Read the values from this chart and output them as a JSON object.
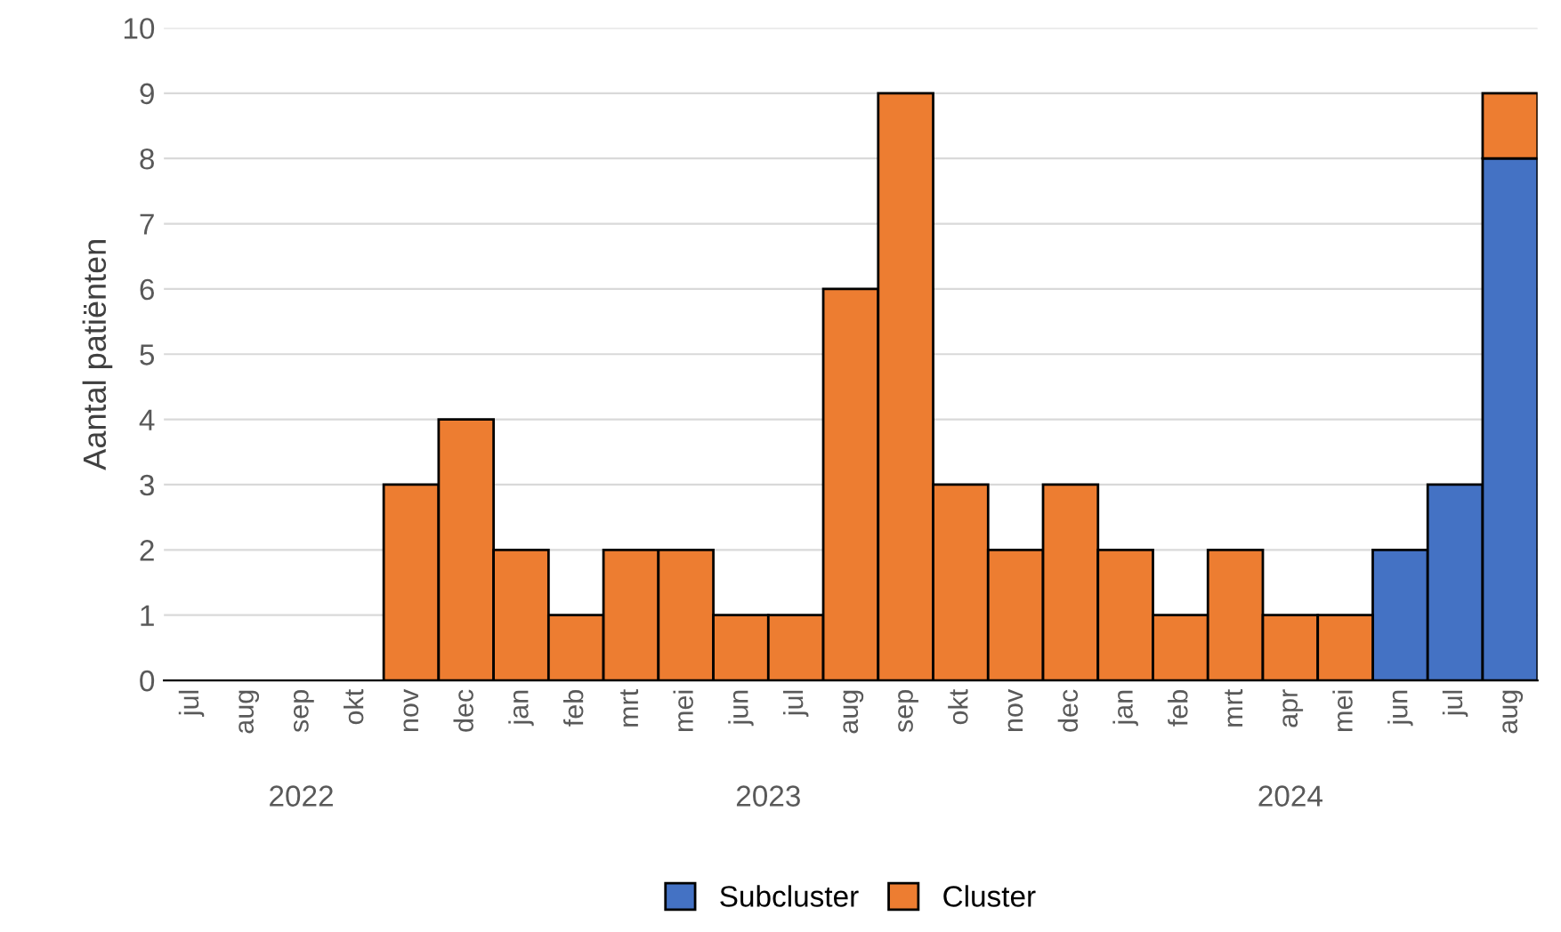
{
  "chart_data": {
    "type": "bar",
    "stacked": true,
    "ylabel": "Aantal patiënten",
    "categories": [
      "jul",
      "aug",
      "sep",
      "okt",
      "nov",
      "dec",
      "jan",
      "feb",
      "mrt",
      "mei",
      "jun",
      "jul",
      "aug",
      "sep",
      "okt",
      "nov",
      "dec",
      "jan",
      "feb",
      "mrt",
      "apr",
      "mei",
      "jun",
      "jul",
      "aug"
    ],
    "series": [
      {
        "name": "Subcluster",
        "color": "#4472c4",
        "values": [
          null,
          null,
          null,
          null,
          null,
          null,
          null,
          null,
          null,
          null,
          null,
          null,
          null,
          null,
          null,
          null,
          null,
          null,
          null,
          null,
          null,
          null,
          2,
          3,
          8
        ]
      },
      {
        "name": "Cluster",
        "color": "#ed7d31",
        "values": [
          null,
          null,
          null,
          null,
          3,
          4,
          2,
          1,
          2,
          2,
          1,
          1,
          6,
          9,
          3,
          2,
          3,
          2,
          1,
          2,
          1,
          1,
          null,
          null,
          1
        ]
      }
    ],
    "annotations": [
      "2022",
      "2023",
      "2024"
    ],
    "ylim": [
      0,
      10
    ],
    "yticks": [
      0,
      1,
      2,
      3,
      4,
      5,
      6,
      7,
      8,
      9,
      10
    ],
    "grid": "y",
    "legend": "bottom"
  }
}
